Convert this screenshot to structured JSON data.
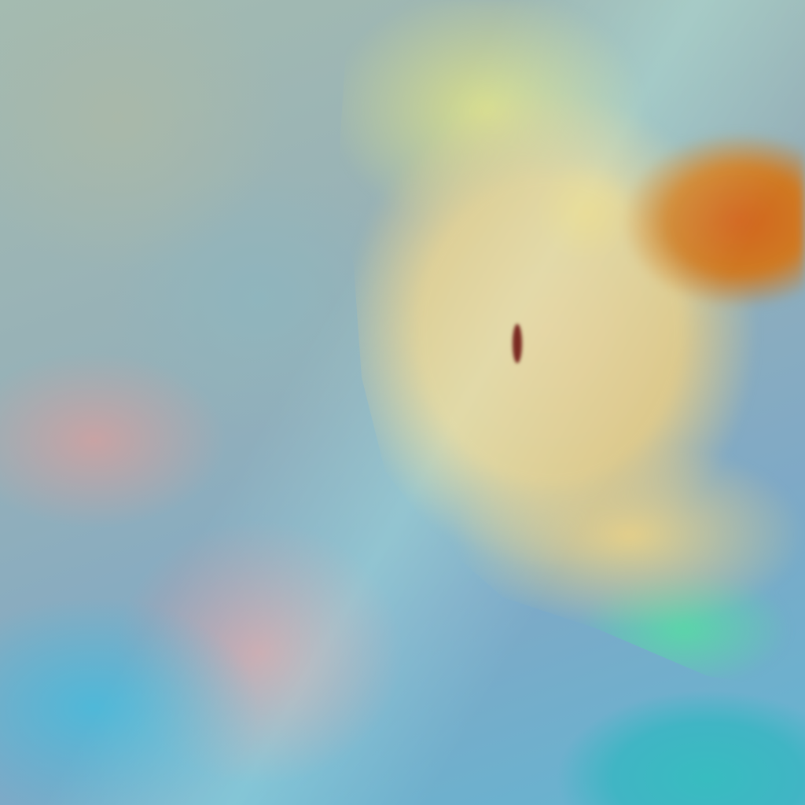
{
  "image": {
    "kind": "false-color satellite imagery",
    "colors": {
      "land": "#a4bbb0",
      "cloud": "#e2c990",
      "cold_cloud_top": "#d2641e",
      "cloud_edge": "#5ad6a8",
      "water": "#38bcc0"
    }
  }
}
